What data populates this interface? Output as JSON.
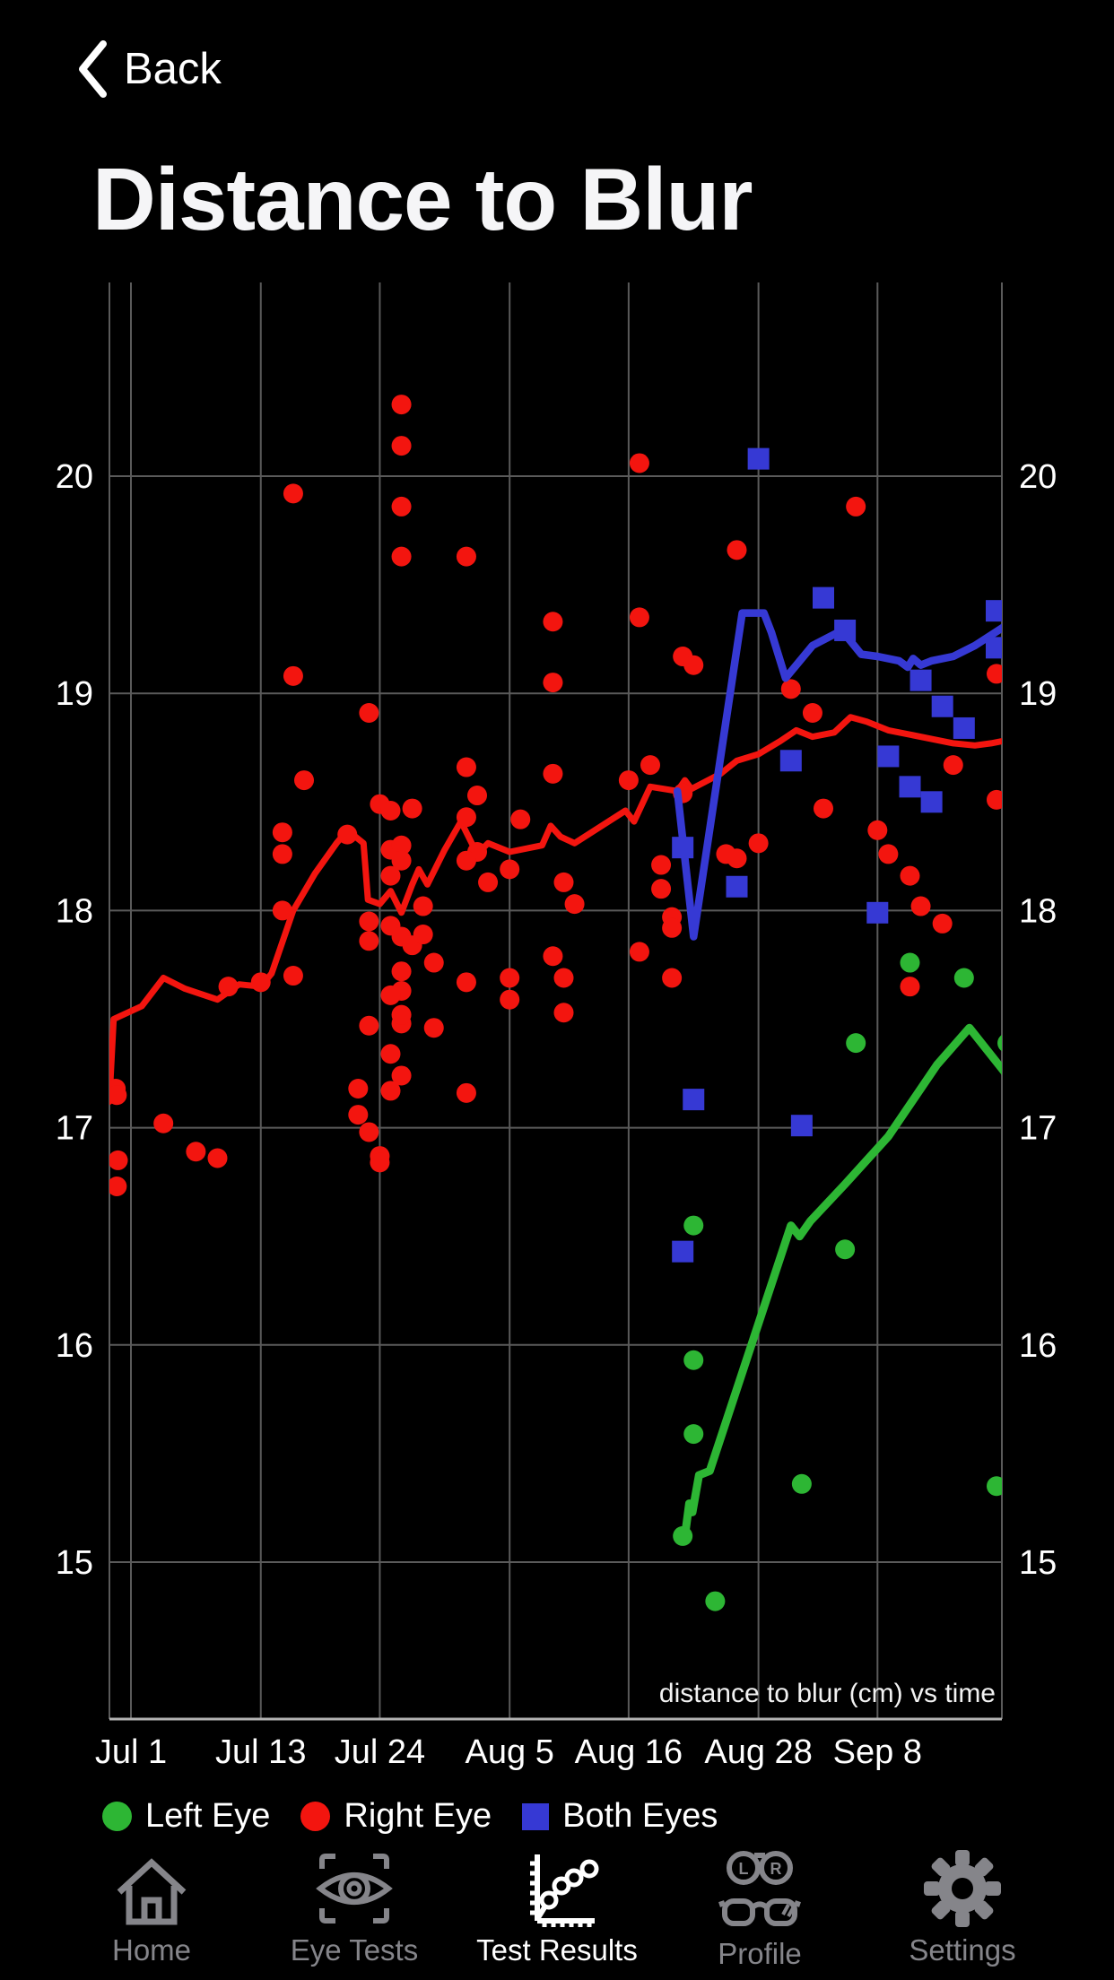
{
  "header": {
    "back_label": "Back",
    "title": "Distance to Blur"
  },
  "chart_data": {
    "type": "scatter",
    "title": "Distance to Blur",
    "annotation": "distance to blur (cm) vs time",
    "x_axis": {
      "tick_labels": [
        "Jul 1",
        "Jul 13",
        "Jul 24",
        "Aug 5",
        "Aug 16",
        "Aug 28",
        "Sep 8"
      ],
      "tick_days": [
        0,
        12,
        23,
        35,
        46,
        58,
        69
      ],
      "range_days": [
        -2,
        80.5
      ]
    },
    "y_axis": {
      "ticks": [
        20,
        19,
        18,
        17,
        16,
        15
      ],
      "labels_on_both_sides": true,
      "range": [
        14.3,
        20.9
      ],
      "unit": "cm"
    },
    "grid": true,
    "legend_position": "bottom",
    "series": [
      {
        "name": "Left Eye",
        "color": "#2db634",
        "marker": "circle",
        "z": 1,
        "points": [
          [
            72,
            17.76
          ],
          [
            77,
            17.69
          ],
          [
            67,
            17.39
          ],
          [
            81,
            17.39
          ],
          [
            52,
            16.55
          ],
          [
            66,
            16.44
          ],
          [
            52,
            15.93
          ],
          [
            52,
            15.59
          ],
          [
            51,
            15.12
          ],
          [
            62,
            15.36
          ],
          [
            80,
            15.35
          ],
          [
            54,
            14.82
          ]
        ],
        "trend": [
          [
            51.2,
            15.12
          ],
          [
            51.6,
            15.27
          ],
          [
            51.9,
            15.23
          ],
          [
            52.5,
            15.4
          ],
          [
            53.5,
            15.42
          ],
          [
            61,
            16.55
          ],
          [
            61.8,
            16.5
          ],
          [
            62.8,
            16.57
          ],
          [
            66,
            16.74
          ],
          [
            70,
            16.96
          ],
          [
            74.5,
            17.29
          ],
          [
            77.5,
            17.46
          ],
          [
            81,
            17.24
          ],
          [
            81.8,
            17.27
          ]
        ]
      },
      {
        "name": "Right Eye",
        "color": "#f3150f",
        "marker": "circle",
        "z": 0,
        "points": [
          [
            25,
            20.33
          ],
          [
            25,
            20.14
          ],
          [
            47,
            20.06
          ],
          [
            15,
            19.92
          ],
          [
            25,
            19.86
          ],
          [
            67,
            19.86
          ],
          [
            25,
            19.63
          ],
          [
            31,
            19.63
          ],
          [
            56,
            19.66
          ],
          [
            39,
            19.33
          ],
          [
            47,
            19.35
          ],
          [
            15,
            19.08
          ],
          [
            39,
            19.05
          ],
          [
            51,
            19.17
          ],
          [
            52,
            19.13
          ],
          [
            61,
            19.02
          ],
          [
            80,
            19.09
          ],
          [
            22,
            18.91
          ],
          [
            63,
            18.91
          ],
          [
            16,
            18.6
          ],
          [
            23,
            18.49
          ],
          [
            24,
            18.46
          ],
          [
            26,
            18.47
          ],
          [
            31,
            18.66
          ],
          [
            32,
            18.53
          ],
          [
            31,
            18.43
          ],
          [
            36,
            18.42
          ],
          [
            14,
            18.36
          ],
          [
            14,
            18.26
          ],
          [
            20,
            18.35
          ],
          [
            24,
            18.28
          ],
          [
            25,
            18.3
          ],
          [
            25,
            18.23
          ],
          [
            24,
            18.16
          ],
          [
            32,
            18.27
          ],
          [
            27,
            18.02
          ],
          [
            31,
            18.23
          ],
          [
            33,
            18.13
          ],
          [
            35,
            18.19
          ],
          [
            14,
            18.0
          ],
          [
            22,
            17.95
          ],
          [
            22,
            17.86
          ],
          [
            24,
            17.93
          ],
          [
            25,
            17.88
          ],
          [
            26,
            17.84
          ],
          [
            27,
            17.89
          ],
          [
            28,
            17.76
          ],
          [
            9,
            17.65
          ],
          [
            12,
            17.67
          ],
          [
            15,
            17.7
          ],
          [
            25,
            17.72
          ],
          [
            25,
            17.63
          ],
          [
            24,
            17.61
          ],
          [
            31,
            17.67
          ],
          [
            35,
            17.69
          ],
          [
            35,
            17.59
          ],
          [
            22,
            17.47
          ],
          [
            25,
            17.48
          ],
          [
            25,
            17.52
          ],
          [
            28,
            17.46
          ],
          [
            24,
            17.34
          ],
          [
            25,
            17.24
          ],
          [
            21,
            17.18
          ],
          [
            24,
            17.17
          ],
          [
            31,
            17.16
          ],
          [
            -1.4,
            17.18
          ],
          [
            -1.3,
            17.15
          ],
          [
            3,
            17.02
          ],
          [
            6,
            16.89
          ],
          [
            8,
            16.86
          ],
          [
            -1.2,
            16.85
          ],
          [
            -1.3,
            16.73
          ],
          [
            21,
            17.06
          ],
          [
            22,
            16.98
          ],
          [
            23,
            16.87
          ],
          [
            23,
            16.84
          ],
          [
            46,
            18.6
          ],
          [
            48,
            18.67
          ],
          [
            39,
            18.63
          ],
          [
            51,
            18.54
          ],
          [
            64,
            18.47
          ],
          [
            69,
            18.37
          ],
          [
            70,
            18.26
          ],
          [
            72,
            18.16
          ],
          [
            76,
            18.67
          ],
          [
            80,
            18.51
          ],
          [
            73,
            18.02
          ],
          [
            75,
            17.94
          ],
          [
            49,
            18.21
          ],
          [
            49,
            18.1
          ],
          [
            50,
            17.97
          ],
          [
            50,
            17.92
          ],
          [
            55,
            18.26
          ],
          [
            56,
            18.24
          ],
          [
            58,
            18.31
          ],
          [
            47,
            17.81
          ],
          [
            50,
            17.69
          ],
          [
            40,
            18.13
          ],
          [
            41,
            18.03
          ],
          [
            39,
            17.79
          ],
          [
            40,
            17.69
          ],
          [
            40,
            17.53
          ],
          [
            72,
            17.65
          ]
        ],
        "trend": [
          [
            -2,
            17.12
          ],
          [
            -1.6,
            17.5
          ],
          [
            1,
            17.56
          ],
          [
            3,
            17.69
          ],
          [
            5,
            17.64
          ],
          [
            8,
            17.59
          ],
          [
            10,
            17.66
          ],
          [
            12,
            17.65
          ],
          [
            13,
            17.71
          ],
          [
            15,
            18.0
          ],
          [
            17,
            18.17
          ],
          [
            19,
            18.31
          ],
          [
            20,
            18.37
          ],
          [
            21.5,
            18.31
          ],
          [
            21.9,
            18.05
          ],
          [
            23,
            18.03
          ],
          [
            24,
            18.09
          ],
          [
            25,
            17.99
          ],
          [
            26,
            18.12
          ],
          [
            26.6,
            18.19
          ],
          [
            27.4,
            18.12
          ],
          [
            29,
            18.28
          ],
          [
            30.5,
            18.41
          ],
          [
            32,
            18.26
          ],
          [
            33,
            18.31
          ],
          [
            35,
            18.27
          ],
          [
            38,
            18.3
          ],
          [
            38.8,
            18.39
          ],
          [
            39.7,
            18.34
          ],
          [
            41,
            18.31
          ],
          [
            45.7,
            18.46
          ],
          [
            46.5,
            18.41
          ],
          [
            48,
            18.57
          ],
          [
            50.5,
            18.55
          ],
          [
            51.2,
            18.6
          ],
          [
            51.8,
            18.56
          ],
          [
            54.5,
            18.63
          ],
          [
            56,
            18.69
          ],
          [
            58,
            18.72
          ],
          [
            60,
            18.78
          ],
          [
            61.5,
            18.83
          ],
          [
            63,
            18.8
          ],
          [
            65,
            18.82
          ],
          [
            66.5,
            18.89
          ],
          [
            68,
            18.87
          ],
          [
            70,
            18.83
          ],
          [
            72,
            18.81
          ],
          [
            74,
            18.79
          ],
          [
            76,
            18.77
          ],
          [
            78,
            18.76
          ],
          [
            79.5,
            18.77
          ],
          [
            81.5,
            18.79
          ]
        ]
      },
      {
        "name": "Both Eyes",
        "color": "#3639d4",
        "marker": "square",
        "z": 2,
        "points": [
          [
            58,
            20.08
          ],
          [
            64,
            19.44
          ],
          [
            66,
            19.29
          ],
          [
            80,
            19.38
          ],
          [
            80,
            19.21
          ],
          [
            73,
            19.06
          ],
          [
            75,
            18.94
          ],
          [
            77,
            18.84
          ],
          [
            72,
            18.57
          ],
          [
            74,
            18.5
          ],
          [
            70,
            18.71
          ],
          [
            61,
            18.69
          ],
          [
            51,
            18.29
          ],
          [
            56,
            18.11
          ],
          [
            69,
            17.99
          ],
          [
            52,
            17.13
          ],
          [
            62,
            17.01
          ],
          [
            51,
            16.43
          ]
        ],
        "trend": [
          [
            50.5,
            18.55
          ],
          [
            52,
            17.88
          ],
          [
            56.5,
            19.37
          ],
          [
            58.5,
            19.37
          ],
          [
            59.2,
            19.28
          ],
          [
            60.5,
            19.07
          ],
          [
            63,
            19.22
          ],
          [
            65.7,
            19.29
          ],
          [
            67.5,
            19.18
          ],
          [
            69,
            19.17
          ],
          [
            71,
            19.15
          ],
          [
            71.8,
            19.12
          ],
          [
            72.3,
            19.16
          ],
          [
            73,
            19.13
          ],
          [
            74,
            19.15
          ],
          [
            76,
            19.17
          ],
          [
            78,
            19.22
          ],
          [
            80.8,
            19.31
          ]
        ]
      }
    ]
  },
  "tab_bar": {
    "active_label": "Test Results",
    "lens_left": "L",
    "lens_right": "R",
    "items": [
      {
        "label": "Home"
      },
      {
        "label": "Eye Tests"
      },
      {
        "label": "Test Results"
      },
      {
        "label": "Profile"
      },
      {
        "label": "Settings"
      }
    ]
  }
}
